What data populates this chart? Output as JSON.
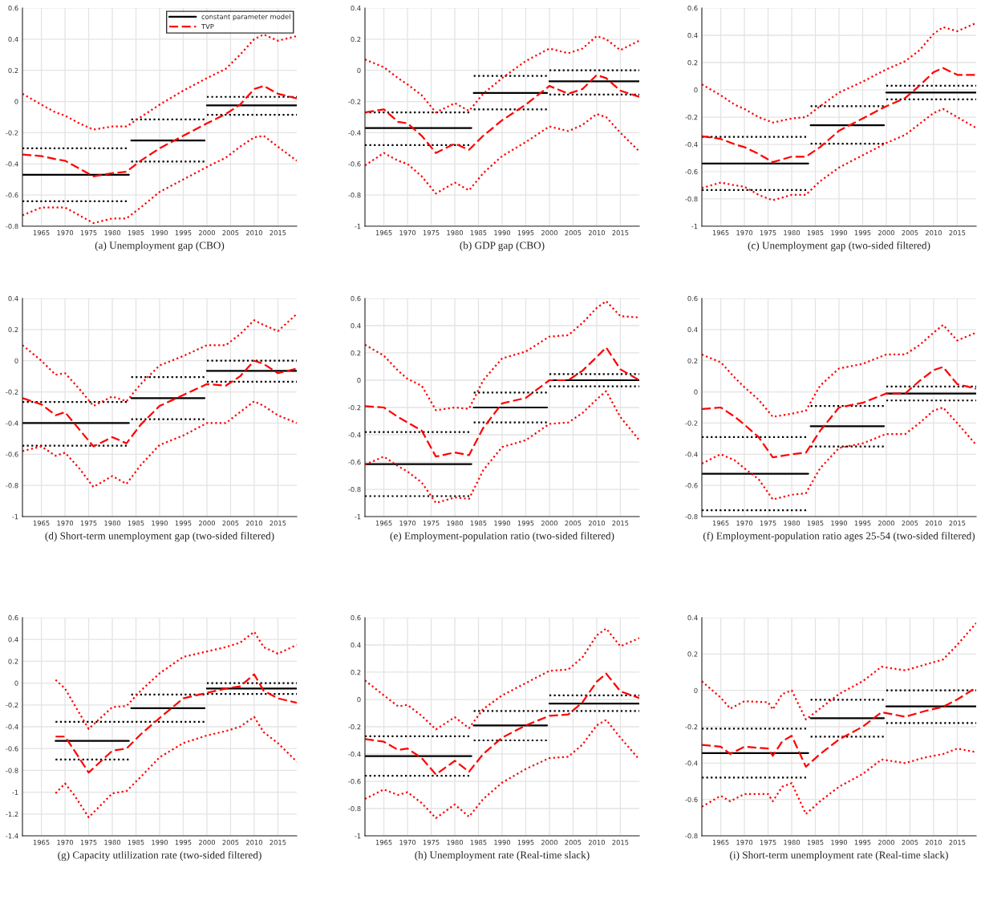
{
  "chart_data": [
    {
      "type": "line",
      "title": "(a) Unemployment gap (CBO)",
      "xlim": [
        1961,
        2019
      ],
      "xticks": [
        1965,
        1970,
        1975,
        1980,
        1985,
        1990,
        1995,
        2000,
        2005,
        2010,
        2015
      ],
      "ylim": [
        -0.8,
        0.6
      ],
      "yticks": [
        -0.8,
        -0.6,
        -0.4,
        -0.2,
        0,
        0.2,
        0.4,
        0.6
      ],
      "grid": true,
      "legend": "top right",
      "series": [
        {
          "name": "constant parameter model",
          "color": "#000000",
          "line_style": "solid",
          "x": [
            1961,
            1983.5,
            1983.7,
            1984,
            1999.5,
            1999.7,
            2000,
            2019
          ],
          "values": [
            -0.47,
            -0.47,
            null,
            -0.25,
            -0.25,
            null,
            -0.025,
            -0.025
          ]
        },
        {
          "color": "#000000",
          "line_style": "dotted",
          "x": [
            1961,
            1983.5,
            1983.7,
            1984,
            1999.5,
            1999.7,
            2000,
            2019
          ],
          "values": [
            -0.64,
            -0.64,
            null,
            -0.385,
            -0.385,
            null,
            -0.085,
            -0.085
          ]
        },
        {
          "color": "#000000",
          "line_style": "dotted",
          "x": [
            1961,
            1983.5,
            1983.7,
            1984,
            1999.5,
            1999.7,
            2000,
            2019
          ],
          "values": [
            -0.3,
            -0.3,
            null,
            -0.115,
            -0.115,
            null,
            0.03,
            0.03
          ]
        },
        {
          "name": "TVP",
          "color": "#ff0000",
          "line_style": "dashed",
          "x": [
            1961,
            1965,
            1968,
            1970,
            1973,
            1976,
            1980,
            1983,
            1986,
            1990,
            1995,
            2000,
            2004,
            2007,
            2010,
            2012,
            2015,
            2019
          ],
          "values": [
            -0.34,
            -0.35,
            -0.37,
            -0.38,
            -0.43,
            -0.48,
            -0.46,
            -0.45,
            -0.38,
            -0.3,
            -0.22,
            -0.14,
            -0.08,
            -0.02,
            0.08,
            0.1,
            0.05,
            0.02
          ]
        },
        {
          "color": "#ff0000",
          "line_style": "dotted",
          "x": [
            1961,
            1965,
            1968,
            1970,
            1973,
            1976,
            1980,
            1983,
            1986,
            1990,
            1995,
            2000,
            2004,
            2007,
            2010,
            2012,
            2015,
            2019
          ],
          "values": [
            -0.73,
            -0.68,
            -0.68,
            -0.68,
            -0.73,
            -0.78,
            -0.75,
            -0.75,
            -0.68,
            -0.58,
            -0.5,
            -0.42,
            -0.36,
            -0.29,
            -0.23,
            -0.22,
            -0.29,
            -0.38
          ]
        },
        {
          "color": "#ff0000",
          "line_style": "dotted",
          "x": [
            1961,
            1965,
            1968,
            1970,
            1973,
            1976,
            1980,
            1983,
            1986,
            1990,
            1995,
            2000,
            2004,
            2007,
            2010,
            2012,
            2015,
            2019
          ],
          "values": [
            0.05,
            -0.02,
            -0.07,
            -0.09,
            -0.14,
            -0.18,
            -0.16,
            -0.16,
            -0.1,
            -0.02,
            0.07,
            0.15,
            0.21,
            0.3,
            0.4,
            0.43,
            0.39,
            0.42
          ]
        }
      ]
    },
    {
      "type": "line",
      "title": "(b) GDP gap (CBO)",
      "xlim": [
        1961,
        2019
      ],
      "xticks": [
        1965,
        1970,
        1975,
        1980,
        1985,
        1990,
        1995,
        2000,
        2005,
        2010,
        2015
      ],
      "ylim": [
        -1,
        0.4
      ],
      "yticks": [
        -1,
        -0.8,
        -0.6,
        -0.4,
        -0.2,
        0,
        0.2,
        0.4
      ],
      "grid": true,
      "series": [
        {
          "color": "#000000",
          "line_style": "solid",
          "x": [
            1961,
            1983.5,
            1983.7,
            1984,
            1999.5,
            1999.7,
            2000,
            2019
          ],
          "values": [
            -0.37,
            -0.37,
            null,
            -0.145,
            -0.145,
            null,
            -0.07,
            -0.07
          ]
        },
        {
          "color": "#000000",
          "line_style": "dotted",
          "x": [
            1961,
            1983.5,
            1983.7,
            1984,
            1999.5,
            1999.7,
            2000,
            2019
          ],
          "values": [
            -0.48,
            -0.48,
            null,
            -0.25,
            -0.25,
            null,
            -0.155,
            -0.155
          ]
        },
        {
          "color": "#000000",
          "line_style": "dotted",
          "x": [
            1961,
            1983.5,
            1983.7,
            1984,
            1999.5,
            1999.7,
            2000,
            2019
          ],
          "values": [
            -0.27,
            -0.27,
            null,
            -0.035,
            -0.035,
            null,
            0,
            0
          ]
        },
        {
          "color": "#ff0000",
          "line_style": "dashed",
          "x": [
            1961,
            1965,
            1968,
            1970,
            1973,
            1976,
            1980,
            1983,
            1986,
            1990,
            1995,
            2000,
            2004,
            2007,
            2010,
            2012,
            2015,
            2019
          ],
          "values": [
            -0.27,
            -0.25,
            -0.33,
            -0.34,
            -0.42,
            -0.53,
            -0.47,
            -0.51,
            -0.42,
            -0.32,
            -0.22,
            -0.1,
            -0.15,
            -0.12,
            -0.03,
            -0.05,
            -0.13,
            -0.17
          ]
        },
        {
          "color": "#ff0000",
          "line_style": "dotted",
          "x": [
            1961,
            1965,
            1968,
            1970,
            1973,
            1976,
            1980,
            1983,
            1986,
            1990,
            1995,
            2000,
            2004,
            2007,
            2010,
            2012,
            2015,
            2019
          ],
          "values": [
            -0.61,
            -0.53,
            -0.58,
            -0.6,
            -0.68,
            -0.79,
            -0.72,
            -0.77,
            -0.66,
            -0.55,
            -0.46,
            -0.36,
            -0.39,
            -0.35,
            -0.28,
            -0.3,
            -0.4,
            -0.52
          ]
        },
        {
          "color": "#ff0000",
          "line_style": "dotted",
          "x": [
            1961,
            1965,
            1968,
            1970,
            1973,
            1976,
            1980,
            1983,
            1986,
            1990,
            1995,
            2000,
            2004,
            2007,
            2010,
            2012,
            2015,
            2019
          ],
          "values": [
            0.07,
            0.02,
            -0.05,
            -0.09,
            -0.16,
            -0.27,
            -0.21,
            -0.26,
            -0.15,
            -0.05,
            0.06,
            0.14,
            0.11,
            0.14,
            0.22,
            0.2,
            0.13,
            0.19
          ]
        }
      ]
    },
    {
      "type": "line",
      "title": "(c) Unemployment gap (two-sided filtered)",
      "xlim": [
        1961,
        2019
      ],
      "xticks": [
        1965,
        1970,
        1975,
        1980,
        1985,
        1990,
        1995,
        2000,
        2005,
        2010,
        2015
      ],
      "ylim": [
        -1,
        0.6
      ],
      "yticks": [
        -1,
        -0.8,
        -0.6,
        -0.4,
        -0.2,
        0,
        0.2,
        0.4,
        0.6
      ],
      "grid": true,
      "series": [
        {
          "color": "#000000",
          "line_style": "solid",
          "x": [
            1961,
            1983.5,
            1983.7,
            1984,
            1999.5,
            1999.7,
            2000,
            2019
          ],
          "values": [
            -0.54,
            -0.54,
            null,
            -0.26,
            -0.26,
            null,
            -0.02,
            -0.02
          ]
        },
        {
          "color": "#000000",
          "line_style": "dotted",
          "x": [
            1961,
            1983.5,
            1983.7,
            1984,
            1999.5,
            1999.7,
            2000,
            2019
          ],
          "values": [
            -0.735,
            -0.735,
            null,
            -0.395,
            -0.395,
            null,
            -0.07,
            -0.07
          ]
        },
        {
          "color": "#000000",
          "line_style": "dotted",
          "x": [
            1961,
            1983.5,
            1983.7,
            1984,
            1999.5,
            1999.7,
            2000,
            2019
          ],
          "values": [
            -0.345,
            -0.345,
            null,
            -0.12,
            -0.12,
            null,
            0.03,
            0.03
          ]
        },
        {
          "color": "#ff0000",
          "line_style": "dashed",
          "x": [
            1961,
            1965,
            1968,
            1970,
            1973,
            1976,
            1980,
            1983,
            1986,
            1990,
            1995,
            2000,
            2004,
            2007,
            2010,
            2012,
            2015,
            2019
          ],
          "values": [
            -0.34,
            -0.36,
            -0.4,
            -0.42,
            -0.47,
            -0.53,
            -0.49,
            -0.49,
            -0.42,
            -0.3,
            -0.21,
            -0.12,
            -0.06,
            0.03,
            0.13,
            0.16,
            0.11,
            0.11
          ]
        },
        {
          "color": "#ff0000",
          "line_style": "dotted",
          "x": [
            1961,
            1965,
            1968,
            1970,
            1973,
            1976,
            1980,
            1983,
            1986,
            1990,
            1995,
            2000,
            2004,
            2007,
            2010,
            2012,
            2015,
            2019
          ],
          "values": [
            -0.72,
            -0.68,
            -0.7,
            -0.71,
            -0.77,
            -0.81,
            -0.77,
            -0.77,
            -0.67,
            -0.57,
            -0.48,
            -0.39,
            -0.33,
            -0.25,
            -0.17,
            -0.14,
            -0.2,
            -0.28
          ]
        },
        {
          "color": "#ff0000",
          "line_style": "dotted",
          "x": [
            1961,
            1965,
            1968,
            1970,
            1973,
            1976,
            1980,
            1983,
            1986,
            1990,
            1995,
            2000,
            2004,
            2007,
            2010,
            2012,
            2015,
            2019
          ],
          "values": [
            0.04,
            -0.04,
            -0.11,
            -0.14,
            -0.2,
            -0.24,
            -0.21,
            -0.2,
            -0.12,
            -0.02,
            0.06,
            0.15,
            0.21,
            0.29,
            0.41,
            0.46,
            0.43,
            0.49
          ]
        }
      ]
    },
    {
      "type": "line",
      "title": "(d) Short-term unemployment gap (two-sided filtered)",
      "xlim": [
        1961,
        2019
      ],
      "xticks": [
        1965,
        1970,
        1975,
        1980,
        1985,
        1990,
        1995,
        2000,
        2005,
        2010,
        2015
      ],
      "ylim": [
        -1,
        0.4
      ],
      "yticks": [
        -1,
        -0.8,
        -0.6,
        -0.4,
        -0.2,
        0,
        0.2,
        0.4
      ],
      "grid": true,
      "series": [
        {
          "color": "#000000",
          "line_style": "solid",
          "x": [
            1961,
            1983.5,
            1983.7,
            1984,
            1999.5,
            1999.7,
            2000,
            2019
          ],
          "values": [
            -0.4,
            -0.4,
            null,
            -0.24,
            -0.24,
            null,
            -0.065,
            -0.065
          ]
        },
        {
          "color": "#000000",
          "line_style": "dotted",
          "x": [
            1961,
            1983.5,
            1983.7,
            1984,
            1999.5,
            1999.7,
            2000,
            2019
          ],
          "values": [
            -0.545,
            -0.545,
            null,
            -0.375,
            -0.375,
            null,
            -0.135,
            -0.135
          ]
        },
        {
          "color": "#000000",
          "line_style": "dotted",
          "x": [
            1961,
            1983.5,
            1983.7,
            1984,
            1999.5,
            1999.7,
            2000,
            2019
          ],
          "values": [
            -0.265,
            -0.265,
            null,
            -0.105,
            -0.105,
            null,
            0,
            0
          ]
        },
        {
          "color": "#ff0000",
          "line_style": "dashed",
          "x": [
            1961,
            1965,
            1968,
            1970,
            1973,
            1976,
            1980,
            1983,
            1986,
            1990,
            1995,
            2000,
            2004,
            2007,
            2010,
            2012,
            2015,
            2019
          ],
          "values": [
            -0.24,
            -0.28,
            -0.35,
            -0.33,
            -0.44,
            -0.55,
            -0.49,
            -0.53,
            -0.41,
            -0.29,
            -0.22,
            -0.15,
            -0.16,
            -0.1,
            0,
            -0.02,
            -0.08,
            -0.05
          ]
        },
        {
          "color": "#ff0000",
          "line_style": "dotted",
          "x": [
            1961,
            1965,
            1968,
            1970,
            1973,
            1976,
            1980,
            1983,
            1986,
            1990,
            1995,
            2000,
            2004,
            2007,
            2010,
            2012,
            2015,
            2019
          ],
          "values": [
            -0.58,
            -0.55,
            -0.61,
            -0.59,
            -0.69,
            -0.81,
            -0.74,
            -0.79,
            -0.67,
            -0.54,
            -0.48,
            -0.4,
            -0.4,
            -0.33,
            -0.26,
            -0.29,
            -0.35,
            -0.4
          ]
        },
        {
          "color": "#ff0000",
          "line_style": "dotted",
          "x": [
            1961,
            1965,
            1968,
            1970,
            1973,
            1976,
            1980,
            1983,
            1986,
            1990,
            1995,
            2000,
            2004,
            2007,
            2010,
            2012,
            2015,
            2019
          ],
          "values": [
            0.1,
            0,
            -0.09,
            -0.08,
            -0.18,
            -0.29,
            -0.23,
            -0.26,
            -0.15,
            -0.03,
            0.03,
            0.1,
            0.1,
            0.17,
            0.26,
            0.23,
            0.19,
            0.3
          ]
        }
      ]
    },
    {
      "type": "line",
      "title": "(e) Employment-population ratio (two-sided filtered)",
      "xlim": [
        1961,
        2019
      ],
      "xticks": [
        1965,
        1970,
        1975,
        1980,
        1985,
        1990,
        1995,
        2000,
        2005,
        2010,
        2015
      ],
      "ylim": [
        -1,
        0.6
      ],
      "yticks": [
        -1,
        -0.8,
        -0.6,
        -0.4,
        -0.2,
        0,
        0.2,
        0.4,
        0.6
      ],
      "grid": true,
      "series": [
        {
          "color": "#000000",
          "line_style": "solid",
          "x": [
            1961,
            1983.5,
            1983.7,
            1984,
            1999.5,
            1999.7,
            2000,
            2019
          ],
          "values": [
            -0.615,
            -0.615,
            null,
            -0.2,
            -0.2,
            null,
            0,
            0
          ]
        },
        {
          "color": "#000000",
          "line_style": "dotted",
          "x": [
            1961,
            1983.5,
            1983.7,
            1984,
            1999.5,
            1999.7,
            2000,
            2019
          ],
          "values": [
            -0.85,
            -0.85,
            null,
            -0.31,
            -0.31,
            null,
            -0.045,
            -0.045
          ]
        },
        {
          "color": "#000000",
          "line_style": "dotted",
          "x": [
            1961,
            1983.5,
            1983.7,
            1984,
            1999.5,
            1999.7,
            2000,
            2019
          ],
          "values": [
            -0.38,
            -0.38,
            null,
            -0.09,
            -0.09,
            null,
            0.045,
            0.045
          ]
        },
        {
          "color": "#ff0000",
          "line_style": "dashed",
          "x": [
            1961,
            1965,
            1968,
            1970,
            1973,
            1976,
            1980,
            1983,
            1986,
            1990,
            1995,
            2000,
            2004,
            2007,
            2010,
            2012,
            2015,
            2019
          ],
          "values": [
            -0.19,
            -0.2,
            -0.27,
            -0.31,
            -0.37,
            -0.56,
            -0.53,
            -0.55,
            -0.35,
            -0.17,
            -0.13,
            0,
            0,
            0.07,
            0.17,
            0.24,
            0.08,
            0
          ]
        },
        {
          "color": "#ff0000",
          "line_style": "dotted",
          "x": [
            1961,
            1965,
            1968,
            1970,
            1973,
            1976,
            1980,
            1983,
            1986,
            1990,
            1995,
            2000,
            2004,
            2007,
            2010,
            2012,
            2015,
            2019
          ],
          "values": [
            -0.62,
            -0.56,
            -0.63,
            -0.67,
            -0.75,
            -0.9,
            -0.86,
            -0.87,
            -0.66,
            -0.49,
            -0.44,
            -0.32,
            -0.31,
            -0.24,
            -0.14,
            -0.08,
            -0.27,
            -0.44
          ]
        },
        {
          "color": "#ff0000",
          "line_style": "dotted",
          "x": [
            1961,
            1965,
            1968,
            1970,
            1973,
            1976,
            1980,
            1983,
            1986,
            1990,
            1995,
            2000,
            2004,
            2007,
            2010,
            2012,
            2015,
            2019
          ],
          "values": [
            0.26,
            0.18,
            0.07,
            0.01,
            -0.04,
            -0.22,
            -0.2,
            -0.21,
            0,
            0.16,
            0.21,
            0.32,
            0.33,
            0.42,
            0.53,
            0.58,
            0.47,
            0.46
          ]
        }
      ]
    },
    {
      "type": "line",
      "title": "(f) Employment-population ratio ages 25-54 (two-sided filtered)",
      "xlim": [
        1961,
        2019
      ],
      "xticks": [
        1965,
        1970,
        1975,
        1980,
        1985,
        1990,
        1995,
        2000,
        2005,
        2010,
        2015
      ],
      "ylim": [
        -0.8,
        0.6
      ],
      "yticks": [
        -0.8,
        -0.6,
        -0.4,
        -0.2,
        0,
        0.2,
        0.4,
        0.6
      ],
      "grid": true,
      "series": [
        {
          "color": "#000000",
          "line_style": "solid",
          "x": [
            1961,
            1983.5,
            1983.7,
            1984,
            1999.5,
            1999.7,
            2000,
            2019
          ],
          "values": [
            -0.525,
            -0.525,
            null,
            -0.22,
            -0.22,
            null,
            -0.01,
            -0.01
          ]
        },
        {
          "color": "#000000",
          "line_style": "dotted",
          "x": [
            1961,
            1983.5,
            1983.7,
            1984,
            1999.5,
            1999.7,
            2000,
            2019
          ],
          "values": [
            -0.76,
            -0.76,
            null,
            -0.35,
            -0.35,
            null,
            -0.055,
            -0.055
          ]
        },
        {
          "color": "#000000",
          "line_style": "dotted",
          "x": [
            1961,
            1983.5,
            1983.7,
            1984,
            1999.5,
            1999.7,
            2000,
            2019
          ],
          "values": [
            -0.29,
            -0.29,
            null,
            -0.09,
            -0.09,
            null,
            0.035,
            0.035
          ]
        },
        {
          "color": "#ff0000",
          "line_style": "dashed",
          "x": [
            1961,
            1965,
            1968,
            1970,
            1973,
            1976,
            1980,
            1983,
            1986,
            1990,
            1995,
            2000,
            2004,
            2007,
            2010,
            2012,
            2015,
            2019
          ],
          "values": [
            -0.11,
            -0.1,
            -0.16,
            -0.21,
            -0.29,
            -0.42,
            -0.4,
            -0.39,
            -0.25,
            -0.1,
            -0.07,
            -0.01,
            -0.01,
            0.07,
            0.14,
            0.16,
            0.05,
            0.02
          ]
        },
        {
          "color": "#ff0000",
          "line_style": "dotted",
          "x": [
            1961,
            1965,
            1968,
            1970,
            1973,
            1976,
            1980,
            1983,
            1986,
            1990,
            1995,
            2000,
            2004,
            2007,
            2010,
            2012,
            2015,
            2019
          ],
          "values": [
            -0.46,
            -0.4,
            -0.44,
            -0.49,
            -0.56,
            -0.69,
            -0.66,
            -0.65,
            -0.49,
            -0.36,
            -0.33,
            -0.27,
            -0.27,
            -0.2,
            -0.12,
            -0.1,
            -0.2,
            -0.34
          ]
        },
        {
          "color": "#ff0000",
          "line_style": "dotted",
          "x": [
            1961,
            1965,
            1968,
            1970,
            1973,
            1976,
            1980,
            1983,
            1986,
            1990,
            1995,
            2000,
            2004,
            2007,
            2010,
            2012,
            2015,
            2019
          ],
          "values": [
            0.24,
            0.19,
            0.09,
            0.03,
            -0.05,
            -0.16,
            -0.14,
            -0.12,
            0.04,
            0.15,
            0.18,
            0.24,
            0.24,
            0.3,
            0.38,
            0.43,
            0.33,
            0.38
          ]
        }
      ]
    },
    {
      "type": "line",
      "title": "(g) Capacity utlilization rate (two-sided filtered)",
      "xlim": [
        1961,
        2019
      ],
      "xticks": [
        1965,
        1970,
        1975,
        1980,
        1985,
        1990,
        1995,
        2000,
        2005,
        2010,
        2015
      ],
      "ylim": [
        -1.4,
        0.6
      ],
      "yticks": [
        -1.4,
        -1.2,
        -1,
        -0.8,
        -0.6,
        -0.4,
        -0.2,
        0,
        0.2,
        0.4,
        0.6
      ],
      "grid": true,
      "series": [
        {
          "color": "#000000",
          "line_style": "solid",
          "x": [
            1968,
            1983.5,
            1983.7,
            1984,
            1999.5,
            1999.7,
            2000,
            2019
          ],
          "values": [
            -0.53,
            -0.53,
            null,
            -0.23,
            -0.23,
            null,
            -0.05,
            -0.05
          ]
        },
        {
          "color": "#000000",
          "line_style": "dotted",
          "x": [
            1968,
            1983.5,
            1983.7,
            1984,
            1999.5,
            1999.7,
            2000,
            2019
          ],
          "values": [
            -0.7,
            -0.7,
            null,
            -0.355,
            -0.355,
            null,
            -0.1,
            -0.1
          ]
        },
        {
          "color": "#000000",
          "line_style": "dotted",
          "x": [
            1968,
            1983.5,
            1983.7,
            1984,
            1999.5,
            1999.7,
            2000,
            2019
          ],
          "values": [
            -0.355,
            -0.355,
            null,
            -0.105,
            -0.105,
            null,
            0,
            0
          ]
        },
        {
          "color": "#ff0000",
          "line_style": "dashed",
          "x": [
            1968,
            1970,
            1972,
            1975,
            1978,
            1980,
            1983,
            1986,
            1990,
            1995,
            2000,
            2004,
            2007,
            2010,
            2012,
            2015,
            2019
          ],
          "values": [
            -0.49,
            -0.49,
            -0.62,
            -0.82,
            -0.7,
            -0.62,
            -0.6,
            -0.47,
            -0.32,
            -0.14,
            -0.09,
            -0.05,
            -0.03,
            0.08,
            -0.07,
            -0.14,
            -0.18
          ]
        },
        {
          "color": "#ff0000",
          "line_style": "dotted",
          "x": [
            1968,
            1970,
            1972,
            1975,
            1978,
            1980,
            1983,
            1986,
            1990,
            1995,
            2000,
            2004,
            2007,
            2010,
            2012,
            2015,
            2019
          ],
          "values": [
            -1.01,
            -0.92,
            -1.03,
            -1.23,
            -1.1,
            -1.01,
            -0.99,
            -0.86,
            -0.68,
            -0.55,
            -0.48,
            -0.44,
            -0.4,
            -0.31,
            -0.45,
            -0.55,
            -0.72
          ]
        },
        {
          "color": "#ff0000",
          "line_style": "dotted",
          "x": [
            1968,
            1970,
            1972,
            1975,
            1978,
            1980,
            1983,
            1986,
            1990,
            1995,
            2000,
            2004,
            2007,
            2010,
            2012,
            2015,
            2019
          ],
          "values": [
            0.03,
            -0.05,
            -0.2,
            -0.42,
            -0.3,
            -0.22,
            -0.21,
            -0.07,
            0.09,
            0.24,
            0.29,
            0.33,
            0.37,
            0.47,
            0.33,
            0.27,
            0.35
          ]
        }
      ]
    },
    {
      "type": "line",
      "title": "(h) Unemployment rate (Real-time slack)",
      "xlim": [
        1961,
        2019
      ],
      "xticks": [
        1965,
        1970,
        1975,
        1980,
        1985,
        1990,
        1995,
        2000,
        2005,
        2010,
        2015
      ],
      "ylim": [
        -1,
        0.6
      ],
      "yticks": [
        -1,
        -0.8,
        -0.6,
        -0.4,
        -0.2,
        0,
        0.2,
        0.4,
        0.6
      ],
      "grid": true,
      "series": [
        {
          "color": "#000000",
          "line_style": "solid",
          "x": [
            1961,
            1983.5,
            1983.7,
            1984,
            1999.5,
            1999.7,
            2000,
            2019
          ],
          "values": [
            -0.415,
            -0.415,
            null,
            -0.19,
            -0.19,
            null,
            -0.03,
            -0.03
          ]
        },
        {
          "color": "#000000",
          "line_style": "dotted",
          "x": [
            1961,
            1983.5,
            1983.7,
            1984,
            1999.5,
            1999.7,
            2000,
            2019
          ],
          "values": [
            -0.56,
            -0.56,
            null,
            -0.3,
            -0.3,
            null,
            -0.085,
            -0.085
          ]
        },
        {
          "color": "#000000",
          "line_style": "dotted",
          "x": [
            1961,
            1983.5,
            1983.7,
            1984,
            1999.5,
            1999.7,
            2000,
            2019
          ],
          "values": [
            -0.27,
            -0.27,
            null,
            -0.085,
            -0.085,
            null,
            0.03,
            0.03
          ]
        },
        {
          "color": "#ff0000",
          "line_style": "dashed",
          "x": [
            1961,
            1965,
            1968,
            1970,
            1973,
            1976,
            1980,
            1983,
            1986,
            1990,
            1995,
            2000,
            2004,
            2007,
            2010,
            2012,
            2015,
            2019
          ],
          "values": [
            -0.29,
            -0.31,
            -0.37,
            -0.36,
            -0.43,
            -0.55,
            -0.45,
            -0.53,
            -0.4,
            -0.28,
            -0.19,
            -0.12,
            -0.11,
            -0.02,
            0.13,
            0.19,
            0.06,
            0.01
          ]
        },
        {
          "color": "#ff0000",
          "line_style": "dotted",
          "x": [
            1961,
            1965,
            1968,
            1970,
            1973,
            1976,
            1980,
            1983,
            1986,
            1990,
            1995,
            2000,
            2004,
            2007,
            2010,
            2012,
            2015,
            2019
          ],
          "values": [
            -0.73,
            -0.66,
            -0.7,
            -0.68,
            -0.76,
            -0.87,
            -0.77,
            -0.86,
            -0.73,
            -0.61,
            -0.51,
            -0.43,
            -0.42,
            -0.33,
            -0.19,
            -0.15,
            -0.28,
            -0.44
          ]
        },
        {
          "color": "#ff0000",
          "line_style": "dotted",
          "x": [
            1961,
            1965,
            1968,
            1970,
            1973,
            1976,
            1980,
            1983,
            1986,
            1990,
            1995,
            2000,
            2004,
            2007,
            2010,
            2012,
            2015,
            2019
          ],
          "values": [
            0.14,
            0.03,
            -0.05,
            -0.04,
            -0.12,
            -0.22,
            -0.13,
            -0.21,
            -0.07,
            0.03,
            0.12,
            0.21,
            0.22,
            0.31,
            0.47,
            0.52,
            0.39,
            0.45
          ]
        }
      ]
    },
    {
      "type": "line",
      "title": "(i) Short-term unemployment rate (Real-time slack)",
      "xlim": [
        1961,
        2019
      ],
      "xticks": [
        1965,
        1970,
        1975,
        1980,
        1985,
        1990,
        1995,
        2000,
        2005,
        2010,
        2015
      ],
      "ylim": [
        -0.8,
        0.4
      ],
      "yticks": [
        -0.8,
        -0.6,
        -0.4,
        -0.2,
        0,
        0.2,
        0.4
      ],
      "grid": true,
      "series": [
        {
          "color": "#000000",
          "line_style": "solid",
          "x": [
            1961,
            1983.5,
            1983.7,
            1984,
            1999.5,
            1999.7,
            2000,
            2019
          ],
          "values": [
            -0.345,
            -0.345,
            null,
            -0.153,
            -0.153,
            null,
            -0.088,
            -0.088
          ]
        },
        {
          "color": "#000000",
          "line_style": "dotted",
          "x": [
            1961,
            1983.5,
            1983.7,
            1984,
            1999.5,
            1999.7,
            2000,
            2019
          ],
          "values": [
            -0.48,
            -0.48,
            null,
            -0.255,
            -0.255,
            null,
            -0.18,
            -0.18
          ]
        },
        {
          "color": "#000000",
          "line_style": "dotted",
          "x": [
            1961,
            1983.5,
            1983.7,
            1984,
            1999.5,
            1999.7,
            2000,
            2019
          ],
          "values": [
            -0.21,
            -0.21,
            null,
            -0.052,
            -0.052,
            null,
            0,
            0
          ]
        },
        {
          "color": "#ff0000",
          "line_style": "dashed",
          "x": [
            1961,
            1965,
            1967,
            1970,
            1975,
            1976,
            1978,
            1980,
            1983,
            1986,
            1990,
            1995,
            1999,
            2004,
            2008,
            2012,
            2015,
            2019
          ],
          "values": [
            -0.3,
            -0.31,
            -0.35,
            -0.31,
            -0.32,
            -0.36,
            -0.28,
            -0.25,
            -0.42,
            -0.35,
            -0.27,
            -0.2,
            -0.12,
            -0.145,
            -0.115,
            -0.09,
            -0.05,
            0.015
          ]
        },
        {
          "color": "#ff0000",
          "line_style": "dotted",
          "x": [
            1961,
            1965,
            1967,
            1970,
            1975,
            1976,
            1978,
            1980,
            1983,
            1986,
            1990,
            1995,
            1999,
            2004,
            2008,
            2012,
            2015,
            2019
          ],
          "values": [
            -0.64,
            -0.58,
            -0.61,
            -0.57,
            -0.57,
            -0.61,
            -0.53,
            -0.51,
            -0.68,
            -0.61,
            -0.53,
            -0.46,
            -0.38,
            -0.4,
            -0.37,
            -0.35,
            -0.32,
            -0.34
          ]
        },
        {
          "color": "#ff0000",
          "line_style": "dotted",
          "x": [
            1961,
            1965,
            1967,
            1970,
            1975,
            1976,
            1978,
            1980,
            1983,
            1986,
            1990,
            1995,
            1999,
            2004,
            2008,
            2012,
            2015,
            2019
          ],
          "values": [
            0.05,
            -0.04,
            -0.1,
            -0.06,
            -0.065,
            -0.105,
            -0.02,
            0,
            -0.16,
            -0.1,
            -0.02,
            0.05,
            0.13,
            0.11,
            0.14,
            0.17,
            0.25,
            0.37
          ]
        }
      ]
    }
  ]
}
